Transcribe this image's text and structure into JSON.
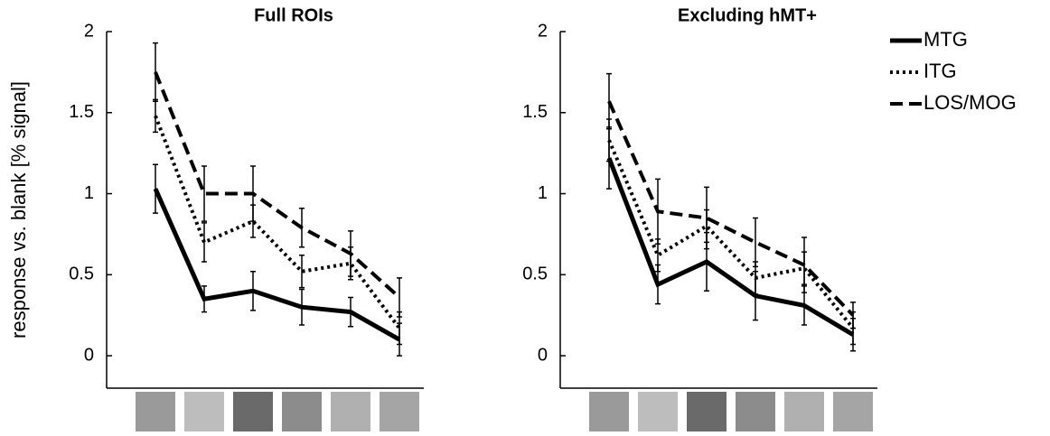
{
  "chart_data": [
    {
      "type": "line",
      "title": "Full ROIs",
      "ylabel": "response vs. blank [% signal]",
      "categories": [
        null,
        null,
        null,
        null,
        null,
        null
      ],
      "ylim": [
        -0.2,
        2
      ],
      "yticks": [
        0,
        0.5,
        1,
        1.5,
        2
      ],
      "series": [
        {
          "color": "#000000",
          "dash": "solid",
          "values": [
            1.03,
            0.35,
            0.4,
            0.3,
            0.27,
            0.1
          ],
          "errors": [
            0.15,
            0.08,
            0.12,
            0.11,
            0.09,
            0.1
          ]
        },
        {
          "color": "#000000",
          "dash": "dotted",
          "values": [
            1.48,
            0.7,
            0.83,
            0.52,
            0.57,
            0.17
          ],
          "errors": [
            0.1,
            0.12,
            0.1,
            0.1,
            0.1,
            0.1
          ]
        },
        {
          "color": "#000000",
          "dash": "dashed",
          "values": [
            1.75,
            1.0,
            1.0,
            0.79,
            0.63,
            0.36
          ],
          "errors": [
            0.18,
            0.17,
            0.17,
            0.12,
            0.14,
            0.12
          ]
        }
      ]
    },
    {
      "type": "line",
      "title": "Excluding hMT+",
      "legend": "outside right",
      "categories": [
        null,
        null,
        null,
        null,
        null,
        null
      ],
      "ylim": [
        -0.2,
        2
      ],
      "yticks": [
        0,
        0.5,
        1,
        1.5,
        2
      ],
      "series": [
        {
          "name": "MTG",
          "color": "#000000",
          "dash": "solid",
          "values": [
            1.22,
            0.44,
            0.58,
            0.37,
            0.31,
            0.13
          ],
          "errors": [
            0.19,
            0.12,
            0.18,
            0.15,
            0.12,
            0.1
          ]
        },
        {
          "name": "ITG",
          "color": "#000000",
          "dash": "dotted",
          "values": [
            1.33,
            0.62,
            0.8,
            0.48,
            0.54,
            0.17
          ],
          "errors": [
            0.13,
            0.1,
            0.1,
            0.1,
            0.1,
            0.1
          ]
        },
        {
          "name": "LOS/MOG",
          "color": "#000000",
          "dash": "dashed",
          "values": [
            1.57,
            0.89,
            0.85,
            0.7,
            0.56,
            0.25
          ],
          "errors": [
            0.17,
            0.2,
            0.19,
            0.15,
            0.17,
            0.08
          ]
        }
      ]
    }
  ]
}
